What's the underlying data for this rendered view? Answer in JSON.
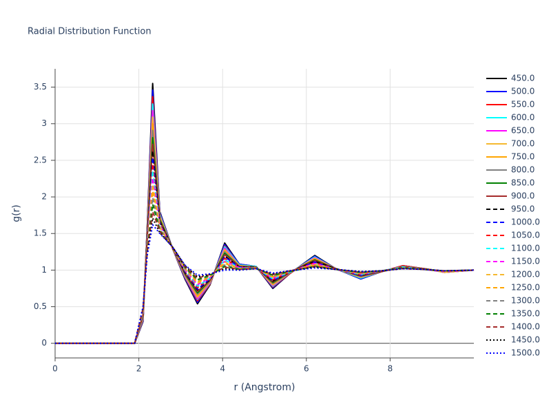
{
  "chart_data": {
    "type": "line",
    "title": "Radial Distribution Function",
    "x_label": "r (Angstrom)",
    "y_label": "g(r)",
    "xlim": [
      0,
      10
    ],
    "xticks": [
      0,
      2,
      4,
      6,
      8
    ],
    "ylim": [
      -0.2,
      3.75
    ],
    "yticks": [
      0,
      0.5,
      1,
      1.5,
      2,
      2.5,
      3,
      3.5
    ],
    "grid": true,
    "legend": "right",
    "x": [
      0,
      1.9,
      2.1,
      2.2,
      2.33,
      2.5,
      2.8,
      3.1,
      3.4,
      3.7,
      4.05,
      4.4,
      4.8,
      5.2,
      5.6,
      6.2,
      6.7,
      7.3,
      7.8,
      8.3,
      8.8,
      9.3,
      10
    ],
    "series": [
      {
        "name": "450.0",
        "color": "black",
        "dash": "solid",
        "values": [
          0,
          0,
          0.3,
          1.6,
          3.55,
          1.8,
          1.3,
          0.88,
          0.54,
          0.8,
          1.37,
          1.08,
          1.05,
          0.75,
          0.95,
          1.2,
          1.02,
          0.88,
          0.98,
          1.06,
          1.02,
          0.97,
          1.0
        ]
      },
      {
        "name": "500.0",
        "color": "blue",
        "dash": "solid",
        "values": [
          0,
          0,
          0.31,
          1.58,
          3.46,
          1.79,
          1.3,
          0.89,
          0.56,
          0.81,
          1.35,
          1.08,
          1.05,
          0.76,
          0.95,
          1.19,
          1.02,
          0.88,
          0.98,
          1.06,
          1.02,
          0.97,
          1.0
        ]
      },
      {
        "name": "550.0",
        "color": "red",
        "dash": "solid",
        "values": [
          0,
          0,
          0.32,
          1.56,
          3.37,
          1.77,
          1.3,
          0.9,
          0.58,
          0.81,
          1.33,
          1.07,
          1.05,
          0.77,
          0.95,
          1.18,
          1.02,
          0.89,
          0.98,
          1.06,
          1.02,
          0.97,
          1.0
        ]
      },
      {
        "name": "600.0",
        "color": "cyan",
        "dash": "solid",
        "values": [
          0,
          0,
          0.33,
          1.54,
          3.27,
          1.76,
          1.3,
          0.91,
          0.6,
          0.82,
          1.32,
          1.07,
          1.05,
          0.78,
          0.96,
          1.18,
          1.02,
          0.89,
          0.98,
          1.05,
          1.02,
          0.97,
          1.0
        ]
      },
      {
        "name": "650.0",
        "color": "magenta",
        "dash": "solid",
        "values": [
          0,
          0,
          0.34,
          1.52,
          3.18,
          1.74,
          1.3,
          0.92,
          0.61,
          0.83,
          1.3,
          1.06,
          1.04,
          0.79,
          0.96,
          1.17,
          1.02,
          0.9,
          0.98,
          1.05,
          1.02,
          0.97,
          1.0
        ]
      },
      {
        "name": "700.0",
        "color": "#f5b82e",
        "dash": "solid",
        "values": [
          0,
          0,
          0.35,
          1.5,
          3.09,
          1.73,
          1.3,
          0.93,
          0.63,
          0.84,
          1.28,
          1.06,
          1.04,
          0.8,
          0.96,
          1.16,
          1.02,
          0.9,
          0.98,
          1.05,
          1.02,
          0.97,
          1.0
        ]
      },
      {
        "name": "750.0",
        "color": "orange",
        "dash": "solid",
        "values": [
          0,
          0,
          0.36,
          1.49,
          3.0,
          1.71,
          1.31,
          0.93,
          0.65,
          0.84,
          1.26,
          1.06,
          1.04,
          0.81,
          0.96,
          1.15,
          1.02,
          0.91,
          0.98,
          1.05,
          1.02,
          0.98,
          1.0
        ]
      },
      {
        "name": "800.0",
        "color": "grey",
        "dash": "solid",
        "values": [
          0,
          0,
          0.37,
          1.47,
          2.91,
          1.7,
          1.31,
          0.94,
          0.67,
          0.85,
          1.25,
          1.05,
          1.04,
          0.82,
          0.96,
          1.14,
          1.02,
          0.91,
          0.98,
          1.05,
          1.02,
          0.98,
          1.0
        ]
      },
      {
        "name": "850.0",
        "color": "green",
        "dash": "solid",
        "values": [
          0,
          0,
          0.38,
          1.45,
          2.81,
          1.69,
          1.31,
          0.95,
          0.69,
          0.86,
          1.23,
          1.05,
          1.04,
          0.83,
          0.97,
          1.14,
          1.02,
          0.92,
          0.98,
          1.04,
          1.02,
          0.98,
          1.0
        ]
      },
      {
        "name": "900.0",
        "color": "brown",
        "dash": "solid",
        "values": [
          0,
          0,
          0.39,
          1.43,
          2.72,
          1.67,
          1.31,
          0.96,
          0.71,
          0.86,
          1.21,
          1.05,
          1.04,
          0.84,
          0.97,
          1.13,
          1.02,
          0.92,
          0.98,
          1.04,
          1.02,
          0.98,
          1.0
        ]
      },
      {
        "name": "950.0",
        "color": "black",
        "dash": "dash",
        "values": [
          0,
          0,
          0.4,
          1.41,
          2.63,
          1.66,
          1.31,
          0.97,
          0.73,
          0.87,
          1.19,
          1.04,
          1.04,
          0.85,
          0.97,
          1.12,
          1.02,
          0.93,
          0.99,
          1.04,
          1.01,
          0.98,
          1.0
        ]
      },
      {
        "name": "1000.0",
        "color": "blue",
        "dash": "dash",
        "values": [
          0,
          0,
          0.4,
          1.39,
          2.54,
          1.64,
          1.31,
          0.98,
          0.74,
          0.88,
          1.18,
          1.04,
          1.03,
          0.86,
          0.97,
          1.11,
          1.01,
          0.93,
          0.99,
          1.04,
          1.01,
          0.98,
          1.0
        ]
      },
      {
        "name": "1050.0",
        "color": "red",
        "dash": "dash",
        "values": [
          0,
          0,
          0.41,
          1.37,
          2.45,
          1.63,
          1.31,
          0.99,
          0.76,
          0.89,
          1.16,
          1.03,
          1.03,
          0.87,
          0.97,
          1.1,
          1.01,
          0.94,
          0.99,
          1.04,
          1.01,
          0.98,
          1.0
        ]
      },
      {
        "name": "1100.0",
        "color": "cyan",
        "dash": "dash",
        "values": [
          0,
          0,
          0.42,
          1.35,
          2.36,
          1.61,
          1.31,
          1.0,
          0.78,
          0.89,
          1.14,
          1.03,
          1.03,
          0.88,
          0.97,
          1.09,
          1.01,
          0.94,
          0.99,
          1.04,
          1.01,
          0.98,
          1.0
        ]
      },
      {
        "name": "1150.0",
        "color": "magenta",
        "dash": "dash",
        "values": [
          0,
          0,
          0.43,
          1.33,
          2.26,
          1.6,
          1.31,
          1.01,
          0.8,
          0.9,
          1.12,
          1.03,
          1.03,
          0.89,
          0.98,
          1.09,
          1.01,
          0.95,
          0.99,
          1.03,
          1.01,
          0.98,
          1.0
        ]
      },
      {
        "name": "1200.0",
        "color": "#f5b82e",
        "dash": "dash",
        "values": [
          0,
          0,
          0.44,
          1.31,
          2.17,
          1.59,
          1.31,
          1.02,
          0.82,
          0.91,
          1.11,
          1.02,
          1.03,
          0.9,
          0.98,
          1.08,
          1.01,
          0.95,
          0.99,
          1.03,
          1.01,
          0.98,
          1.0
        ]
      },
      {
        "name": "1250.0",
        "color": "orange",
        "dash": "dash",
        "values": [
          0,
          0,
          0.45,
          1.3,
          2.08,
          1.57,
          1.32,
          1.02,
          0.84,
          0.91,
          1.09,
          1.02,
          1.03,
          0.91,
          0.98,
          1.07,
          1.01,
          0.96,
          0.99,
          1.03,
          1.01,
          0.99,
          1.0
        ]
      },
      {
        "name": "1300.0",
        "color": "grey",
        "dash": "dash",
        "values": [
          0,
          0,
          0.46,
          1.28,
          1.99,
          1.56,
          1.32,
          1.03,
          0.86,
          0.92,
          1.07,
          1.02,
          1.03,
          0.92,
          0.98,
          1.06,
          1.01,
          0.96,
          0.99,
          1.03,
          1.01,
          0.99,
          1.0
        ]
      },
      {
        "name": "1350.0",
        "color": "green",
        "dash": "dash",
        "values": [
          0,
          0,
          0.47,
          1.26,
          1.9,
          1.54,
          1.32,
          1.04,
          0.87,
          0.93,
          1.05,
          1.01,
          1.02,
          0.93,
          0.98,
          1.05,
          1.01,
          0.97,
          0.99,
          1.03,
          1.01,
          0.99,
          1.0
        ]
      },
      {
        "name": "1400.0",
        "color": "brown",
        "dash": "dash",
        "values": [
          0,
          0,
          0.48,
          1.24,
          1.8,
          1.53,
          1.32,
          1.05,
          0.89,
          0.94,
          1.04,
          1.01,
          1.02,
          0.94,
          0.99,
          1.05,
          1.01,
          0.97,
          0.99,
          1.02,
          1.01,
          0.99,
          1.0
        ]
      },
      {
        "name": "1450.0",
        "color": "black",
        "dash": "dot",
        "values": [
          0,
          0,
          0.49,
          1.22,
          1.71,
          1.51,
          1.32,
          1.06,
          0.91,
          0.94,
          1.02,
          1.0,
          1.02,
          0.95,
          0.99,
          1.04,
          1.01,
          0.98,
          0.99,
          1.02,
          1.01,
          0.99,
          1.0
        ]
      },
      {
        "name": "1500.0",
        "color": "blue",
        "dash": "dot",
        "values": [
          0,
          0,
          0.5,
          1.2,
          1.62,
          1.5,
          1.32,
          1.07,
          0.93,
          0.95,
          1.0,
          1.0,
          1.02,
          0.96,
          0.99,
          1.03,
          1.01,
          0.98,
          0.99,
          1.02,
          1.01,
          0.99,
          1.0
        ]
      }
    ]
  }
}
